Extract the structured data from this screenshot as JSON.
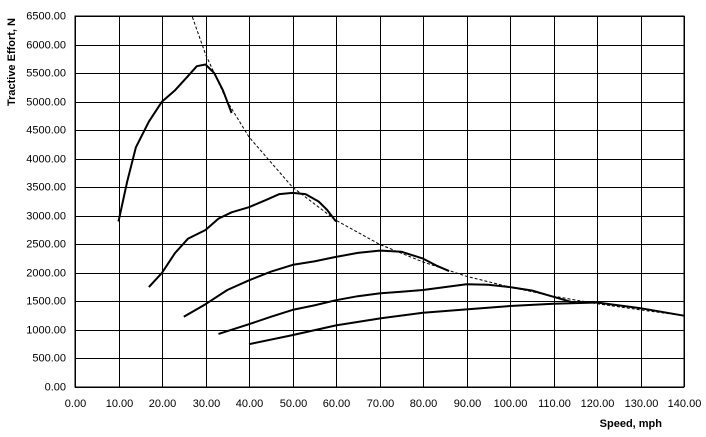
{
  "chart_data": {
    "type": "line",
    "x_label": "Speed, mph",
    "y_label": "Tractive Effort, N",
    "xlim": [
      0,
      140
    ],
    "ylim": [
      0,
      6500
    ],
    "grid": true,
    "xticks": [
      {
        "value": 0,
        "label": "0.00"
      },
      {
        "value": 10,
        "label": "10.00"
      },
      {
        "value": 20,
        "label": "20.00"
      },
      {
        "value": 30,
        "label": "30.00"
      },
      {
        "value": 40,
        "label": "40.00"
      },
      {
        "value": 50,
        "label": "50.00"
      },
      {
        "value": 60,
        "label": "60.00"
      },
      {
        "value": 70,
        "label": "70.00"
      },
      {
        "value": 80,
        "label": "80.00"
      },
      {
        "value": 90,
        "label": "90.00"
      },
      {
        "value": 100,
        "label": "100.00"
      },
      {
        "value": 110,
        "label": "110.00"
      },
      {
        "value": 120,
        "label": "120.00"
      },
      {
        "value": 130,
        "label": "130.00"
      },
      {
        "value": 140,
        "label": "140.00"
      }
    ],
    "yticks": [
      {
        "value": 0,
        "label": "0.00"
      },
      {
        "value": 500,
        "label": "500.00"
      },
      {
        "value": 1000,
        "label": "1000.00"
      },
      {
        "value": 1500,
        "label": "1500.00"
      },
      {
        "value": 2000,
        "label": "2000.00"
      },
      {
        "value": 2500,
        "label": "2500.00"
      },
      {
        "value": 3000,
        "label": "3000.00"
      },
      {
        "value": 3500,
        "label": "3500.00"
      },
      {
        "value": 4000,
        "label": "4000.00"
      },
      {
        "value": 4500,
        "label": "4500.00"
      },
      {
        "value": 5000,
        "label": "5000.00"
      },
      {
        "value": 5500,
        "label": "5500.00"
      },
      {
        "value": 6000,
        "label": "6000.00"
      },
      {
        "value": 6500,
        "label": "6500.00"
      }
    ],
    "series": [
      {
        "color": "#000000",
        "dashed": false,
        "x": [
          10,
          12,
          14,
          17,
          20,
          23,
          26,
          28,
          30,
          32,
          34,
          36
        ],
        "values": [
          2900,
          3600,
          4200,
          4650,
          5000,
          5200,
          5450,
          5620,
          5650,
          5500,
          5200,
          4800
        ]
      },
      {
        "color": "#000000",
        "dashed": false,
        "x": [
          17,
          20,
          23,
          26,
          30,
          33,
          36,
          40,
          44,
          47,
          50,
          53,
          56,
          58,
          60
        ],
        "values": [
          1750,
          2000,
          2350,
          2600,
          2750,
          2950,
          3060,
          3150,
          3280,
          3380,
          3400,
          3380,
          3250,
          3100,
          2900
        ]
      },
      {
        "color": "#000000",
        "dashed": false,
        "x": [
          25,
          30,
          35,
          40,
          45,
          50,
          55,
          60,
          65,
          70,
          75,
          80,
          83,
          86
        ],
        "values": [
          1230,
          1450,
          1700,
          1870,
          2020,
          2140,
          2200,
          2280,
          2350,
          2390,
          2370,
          2250,
          2130,
          2030
        ]
      },
      {
        "color": "#000000",
        "dashed": false,
        "x": [
          33,
          40,
          45,
          50,
          55,
          60,
          65,
          70,
          75,
          80,
          85,
          90,
          95,
          100,
          105,
          110,
          115
        ],
        "values": [
          930,
          1100,
          1230,
          1350,
          1430,
          1520,
          1590,
          1640,
          1670,
          1700,
          1750,
          1800,
          1790,
          1750,
          1690,
          1580,
          1470
        ]
      },
      {
        "color": "#000000",
        "dashed": false,
        "x": [
          40,
          50,
          60,
          70,
          80,
          90,
          100,
          110,
          120,
          130,
          140
        ],
        "values": [
          750,
          910,
          1080,
          1200,
          1300,
          1360,
          1420,
          1460,
          1480,
          1380,
          1250
        ]
      },
      {
        "color": "#000000",
        "dashed": true,
        "x": [
          27,
          30,
          35,
          40,
          50,
          60,
          70,
          80,
          90,
          100,
          110,
          120,
          130,
          140
        ],
        "values": [
          6480,
          5830,
          5000,
          4380,
          3500,
          2920,
          2500,
          2190,
          1940,
          1750,
          1590,
          1460,
          1350,
          1250
        ]
      }
    ]
  }
}
